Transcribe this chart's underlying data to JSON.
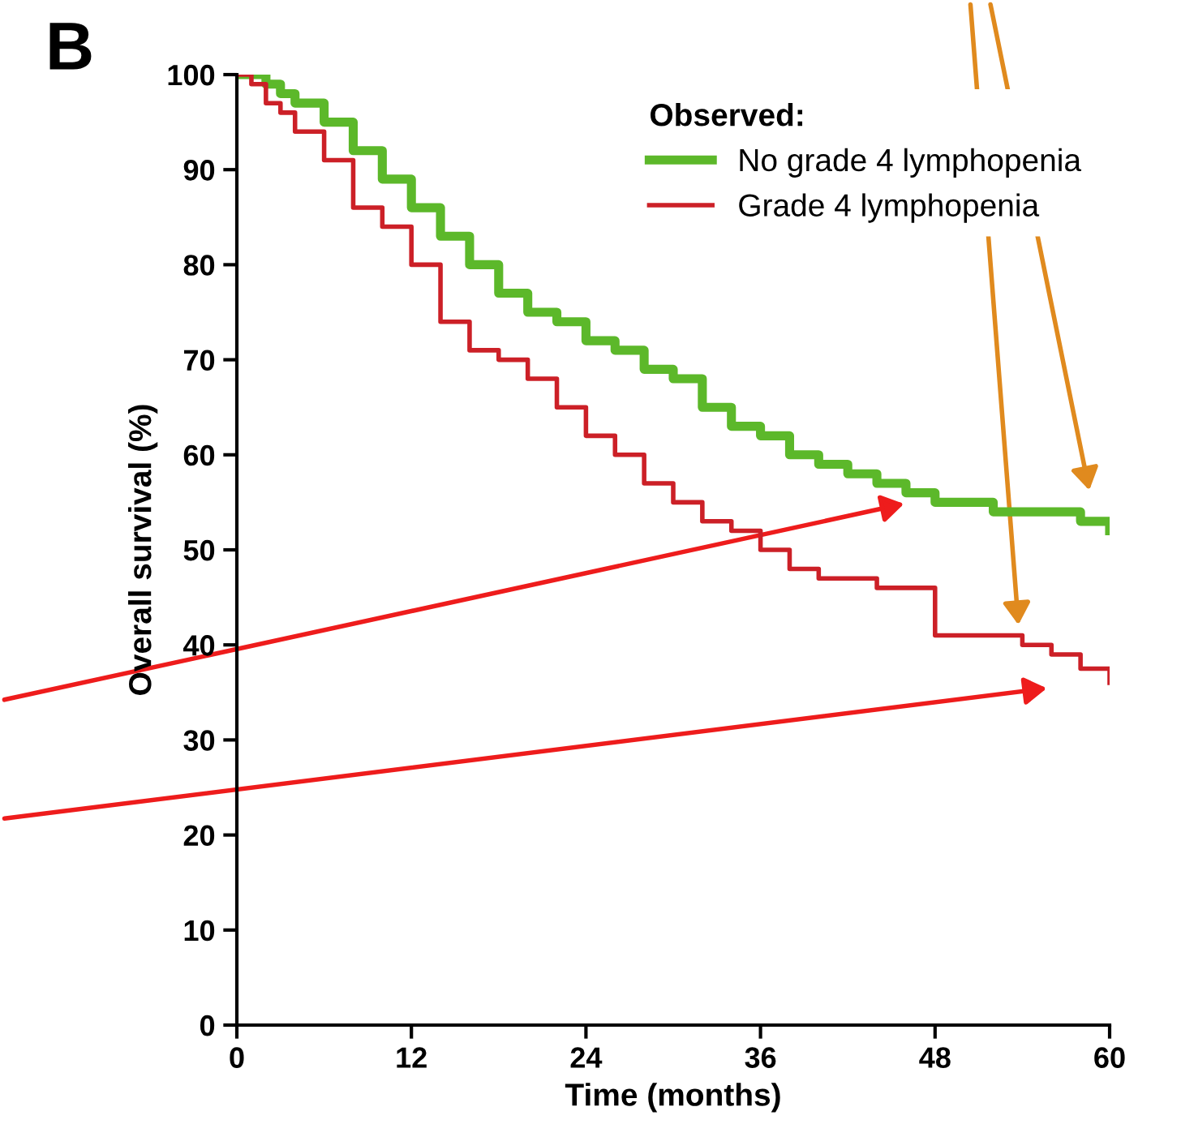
{
  "chart_data": {
    "type": "step",
    "annotations": [
      "B"
    ],
    "xlabel": "Time (months)",
    "ylabel": "Overall survival (%)",
    "legend_title": "Observed:",
    "legend": "top right",
    "grid": false,
    "x": [
      0,
      1,
      2,
      3,
      4,
      6,
      8,
      10,
      12,
      14,
      16,
      18,
      20,
      22,
      24,
      26,
      28,
      30,
      32,
      34,
      36,
      38,
      40,
      42,
      44,
      46,
      48,
      50,
      52,
      54,
      56,
      58,
      60
    ],
    "series": [
      {
        "name": "No grade 4 lymphopenia",
        "color": "#5cb82a",
        "values": [
          100,
          100,
          99,
          98,
          97,
          95,
          92,
          89,
          86,
          83,
          80,
          77,
          75,
          74,
          72,
          71,
          69,
          68,
          65,
          63,
          62,
          60,
          59,
          58,
          57,
          56,
          55,
          55,
          54,
          54,
          54,
          53,
          52
        ]
      },
      {
        "name": "Grade 4 lymphopenia",
        "color": "#cc2027",
        "values": [
          100,
          99,
          97,
          96,
          94,
          91,
          86,
          84,
          80,
          74,
          71,
          70,
          68,
          65,
          62,
          60,
          57,
          55,
          53,
          52,
          50,
          48,
          47,
          47,
          46,
          46,
          41,
          41,
          41,
          40,
          39,
          37.5,
          36
        ]
      }
    ],
    "xlim": [
      0,
      60
    ],
    "xticks": [
      0,
      12,
      24,
      36,
      48,
      60
    ],
    "ylim": [
      0,
      100
    ],
    "yticks": [
      0,
      10,
      20,
      30,
      40,
      50,
      60,
      70,
      80,
      90,
      100
    ]
  }
}
